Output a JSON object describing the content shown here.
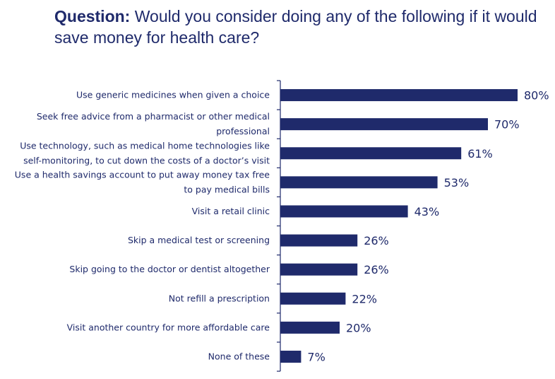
{
  "title": {
    "lead": "Question:",
    "text": " Would you consider doing any of the following if it would save money for health care?"
  },
  "colors": {
    "bar": "#1f2a6b",
    "text": "#1f2a6b",
    "axis": "#1f2a6b"
  },
  "chart_data": {
    "type": "bar",
    "orientation": "horizontal",
    "categories": [
      [
        "Use generic medicines when given a choice"
      ],
      [
        "Seek free advice from a pharmacist or other medical",
        "professional"
      ],
      [
        "Use technology, such as medical home technologies like",
        "self-monitoring, to cut down the costs of a doctor’s visit"
      ],
      [
        "Use a health savings account to put away money tax free",
        "to pay medical bills"
      ],
      [
        "Visit a retail clinic"
      ],
      [
        "Skip a medical test or screening"
      ],
      [
        "Skip going to the doctor or dentist altogether"
      ],
      [
        "Not refill a prescription"
      ],
      [
        "Visit another country for more affordable care"
      ],
      [
        "None of these"
      ]
    ],
    "values": [
      80,
      70,
      61,
      53,
      43,
      26,
      26,
      22,
      20,
      7
    ],
    "value_labels": [
      "80%",
      "70%",
      "61%",
      "53%",
      "43%",
      "26%",
      "26%",
      "22%",
      "20%",
      "7%"
    ],
    "xlim": [
      0,
      100
    ],
    "grid": false,
    "legend": "none"
  }
}
